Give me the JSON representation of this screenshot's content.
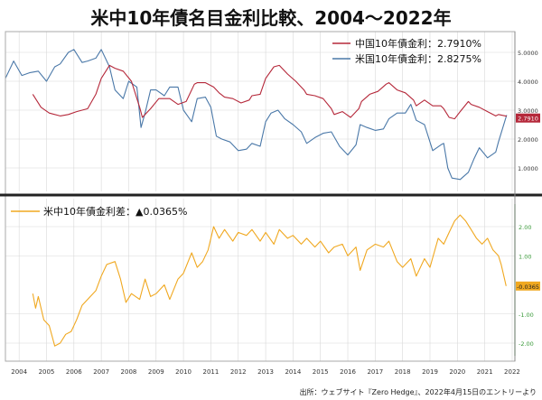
{
  "title": "米中10年債名目金利比較、2004～2022年",
  "source": "出所：ウェブサイト『Zero Hedge』、2022年4月15日のエントリーより",
  "colors": {
    "china": "#b5283a",
    "us": "#4a78a8",
    "spread": "#f0a820",
    "divider": "#222222",
    "axis_green": "#3a9a3a",
    "grid": "#d8d8d8"
  },
  "chart_data": [
    {
      "type": "line",
      "xlabel": "",
      "ylabel": "",
      "ylim": [
        0,
        5.5
      ],
      "y_ticks": [
        "1.0000",
        "2.0000",
        "3.0000",
        "4.0000",
        "5.0000"
      ],
      "y_tick_values": [
        1,
        2,
        3,
        4,
        5
      ],
      "legend_position": "top-right",
      "series": [
        {
          "name": "中国10年債金利：2.7910%",
          "last_label": "2.7910",
          "color": "#b5283a",
          "x": [
            2005.0,
            2005.3,
            2005.6,
            2006.0,
            2006.3,
            2006.6,
            2007.0,
            2007.3,
            2007.5,
            2007.8,
            2008.0,
            2008.3,
            2008.6,
            2008.9,
            2009.0,
            2009.3,
            2009.6,
            2010.0,
            2010.3,
            2010.6,
            2010.9,
            2011.0,
            2011.3,
            2011.6,
            2011.8,
            2012.0,
            2012.3,
            2012.6,
            2012.9,
            2013.0,
            2013.3,
            2013.5,
            2013.8,
            2014.0,
            2014.3,
            2014.6,
            2014.9,
            2015.0,
            2015.3,
            2015.6,
            2015.9,
            2016.0,
            2016.3,
            2016.6,
            2016.9,
            2017.0,
            2017.3,
            2017.6,
            2017.9,
            2018.0,
            2018.3,
            2018.6,
            2018.9,
            2019.0,
            2019.3,
            2019.6,
            2019.9,
            2020.0,
            2020.2,
            2020.4,
            2020.6,
            2020.9,
            2021.0,
            2021.3,
            2021.6,
            2021.9,
            2022.0,
            2022.3
          ],
          "y": [
            3.55,
            3.1,
            2.9,
            2.8,
            2.85,
            2.95,
            3.05,
            3.55,
            4.1,
            4.55,
            4.45,
            4.35,
            4.0,
            3.1,
            2.75,
            3.05,
            3.4,
            3.4,
            3.2,
            3.3,
            3.9,
            3.95,
            3.95,
            3.8,
            3.6,
            3.45,
            3.4,
            3.25,
            3.35,
            3.5,
            3.55,
            4.1,
            4.5,
            4.55,
            4.25,
            4.0,
            3.7,
            3.55,
            3.5,
            3.4,
            3.05,
            2.85,
            2.95,
            2.75,
            3.05,
            3.3,
            3.55,
            3.65,
            3.9,
            3.95,
            3.7,
            3.6,
            3.35,
            3.15,
            3.35,
            3.15,
            3.15,
            3.05,
            2.75,
            2.7,
            2.95,
            3.3,
            3.2,
            3.1,
            2.95,
            2.8,
            2.85,
            2.79
          ]
        },
        {
          "name": "米国10年債金利：2.8275%",
          "last_label": "2.8275",
          "color": "#4a78a8",
          "x": [
            2004.0,
            2004.3,
            2004.6,
            2004.9,
            2005.2,
            2005.5,
            2005.8,
            2006.0,
            2006.3,
            2006.5,
            2006.8,
            2007.0,
            2007.3,
            2007.5,
            2007.8,
            2008.0,
            2008.3,
            2008.5,
            2008.8,
            2008.95,
            2009.1,
            2009.3,
            2009.5,
            2009.8,
            2010.0,
            2010.3,
            2010.5,
            2010.8,
            2011.0,
            2011.3,
            2011.5,
            2011.7,
            2011.9,
            2012.2,
            2012.5,
            2012.8,
            2013.0,
            2013.3,
            2013.5,
            2013.7,
            2013.95,
            2014.2,
            2014.5,
            2014.8,
            2015.0,
            2015.3,
            2015.6,
            2015.9,
            2016.2,
            2016.5,
            2016.8,
            2016.95,
            2017.2,
            2017.5,
            2017.8,
            2018.0,
            2018.3,
            2018.6,
            2018.8,
            2019.0,
            2019.3,
            2019.6,
            2019.9,
            2020.0,
            2020.15,
            2020.3,
            2020.6,
            2020.9,
            2021.1,
            2021.3,
            2021.6,
            2021.9,
            2022.0,
            2022.3
          ],
          "y": [
            4.1,
            4.7,
            4.2,
            4.3,
            4.35,
            4.0,
            4.5,
            4.6,
            5.0,
            5.1,
            4.65,
            4.7,
            4.8,
            5.1,
            4.5,
            3.7,
            3.4,
            4.0,
            3.8,
            2.4,
            2.9,
            3.7,
            3.7,
            3.5,
            3.8,
            3.8,
            3.0,
            2.6,
            3.4,
            3.45,
            3.1,
            2.1,
            2.0,
            1.9,
            1.6,
            1.65,
            1.85,
            1.75,
            2.6,
            2.9,
            3.0,
            2.7,
            2.5,
            2.25,
            1.85,
            2.05,
            2.2,
            2.25,
            1.75,
            1.45,
            1.8,
            2.5,
            2.4,
            2.3,
            2.35,
            2.7,
            2.9,
            2.9,
            3.2,
            2.65,
            2.5,
            1.6,
            1.8,
            1.85,
            1.0,
            0.65,
            0.6,
            0.85,
            1.3,
            1.7,
            1.35,
            1.55,
            1.9,
            2.83
          ]
        }
      ]
    },
    {
      "type": "line",
      "xlabel": "",
      "ylabel": "",
      "ylim": [
        -2.5,
        2.5
      ],
      "y_ticks": [
        "2.00",
        "1.00",
        "-1.00",
        "-2.00"
      ],
      "y_tick_values": [
        2,
        1,
        -1,
        -2
      ],
      "legend_position": "top-left",
      "series": [
        {
          "name": "米中10年債金利差：▲0.0365%",
          "last_label": "-0.0365",
          "color": "#f0a820",
          "x": [
            2005.0,
            2005.1,
            2005.2,
            2005.4,
            2005.6,
            2005.8,
            2006.0,
            2006.2,
            2006.4,
            2006.6,
            2006.8,
            2007.0,
            2007.1,
            2007.3,
            2007.5,
            2007.7,
            2008.0,
            2008.2,
            2008.4,
            2008.6,
            2008.9,
            2009.1,
            2009.3,
            2009.5,
            2009.8,
            2010.0,
            2010.3,
            2010.5,
            2010.8,
            2011.0,
            2011.2,
            2011.4,
            2011.6,
            2011.8,
            2012.0,
            2012.3,
            2012.5,
            2012.8,
            2013.0,
            2013.3,
            2013.5,
            2013.8,
            2014.0,
            2014.3,
            2014.5,
            2014.8,
            2015.0,
            2015.3,
            2015.5,
            2015.8,
            2016.0,
            2016.3,
            2016.5,
            2016.8,
            2016.95,
            2017.2,
            2017.5,
            2017.8,
            2018.0,
            2018.3,
            2018.5,
            2018.8,
            2019.0,
            2019.3,
            2019.5,
            2019.8,
            2020.0,
            2020.2,
            2020.4,
            2020.6,
            2020.8,
            2021.0,
            2021.2,
            2021.4,
            2021.6,
            2021.8,
            2022.0,
            2022.1,
            2022.28
          ],
          "y": [
            -0.3,
            -0.8,
            -0.4,
            -1.2,
            -1.4,
            -2.1,
            -2.0,
            -1.7,
            -1.6,
            -1.2,
            -0.7,
            -0.5,
            -0.4,
            -0.2,
            0.3,
            0.7,
            0.8,
            0.2,
            -0.6,
            -0.3,
            -0.5,
            0.2,
            -0.4,
            -0.3,
            0.0,
            -0.5,
            0.2,
            0.4,
            1.1,
            0.6,
            0.8,
            1.2,
            2.0,
            1.6,
            1.9,
            1.5,
            1.8,
            1.7,
            1.9,
            1.5,
            1.8,
            1.4,
            1.9,
            1.6,
            1.7,
            1.4,
            1.6,
            1.3,
            1.5,
            1.1,
            1.3,
            1.4,
            1.0,
            1.3,
            0.5,
            1.2,
            1.4,
            1.3,
            1.5,
            0.8,
            0.6,
            0.9,
            0.3,
            0.9,
            0.6,
            1.6,
            1.4,
            1.8,
            2.2,
            2.4,
            2.2,
            1.9,
            1.6,
            1.4,
            1.6,
            1.2,
            1.0,
            0.7,
            -0.04
          ]
        }
      ]
    }
  ],
  "x_axis": {
    "min": 2004,
    "max": 2022.6,
    "tick_labels": [
      "2004",
      "2005",
      "2006",
      "2007",
      "2008",
      "2009",
      "2010",
      "2011",
      "2012",
      "2013",
      "2014",
      "2015",
      "2016",
      "2017",
      "2018",
      "2019",
      "2020",
      "2021",
      "2022"
    ]
  }
}
